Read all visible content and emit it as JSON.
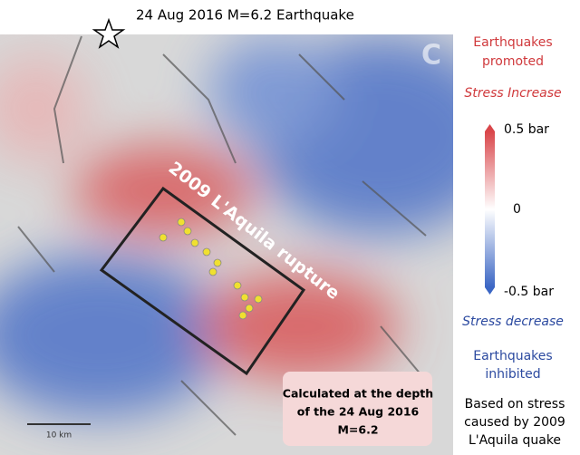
{
  "header": {
    "title": "24 Aug 2016 M=6.2 Earthquake"
  },
  "map": {
    "panel_letter": "C",
    "rupture_label": "2009 L'Aquila rupture",
    "scale_label": "10 km",
    "note": [
      "Calculated at the depth",
      "of the 24 Aug 2016",
      "M=6.2"
    ]
  },
  "legend": {
    "promoted": [
      "Earthquakes",
      "promoted"
    ],
    "increase": "Stress Increase",
    "colorbar": {
      "top": "0.5 bar",
      "middle": "0",
      "bottom": "-0.5 bar"
    },
    "decrease": "Stress decrease",
    "inhibited": [
      "Earthquakes",
      "inhibited"
    ],
    "basis": [
      "Based on stress",
      "caused by 2009",
      "L'Aquila quake"
    ]
  }
}
